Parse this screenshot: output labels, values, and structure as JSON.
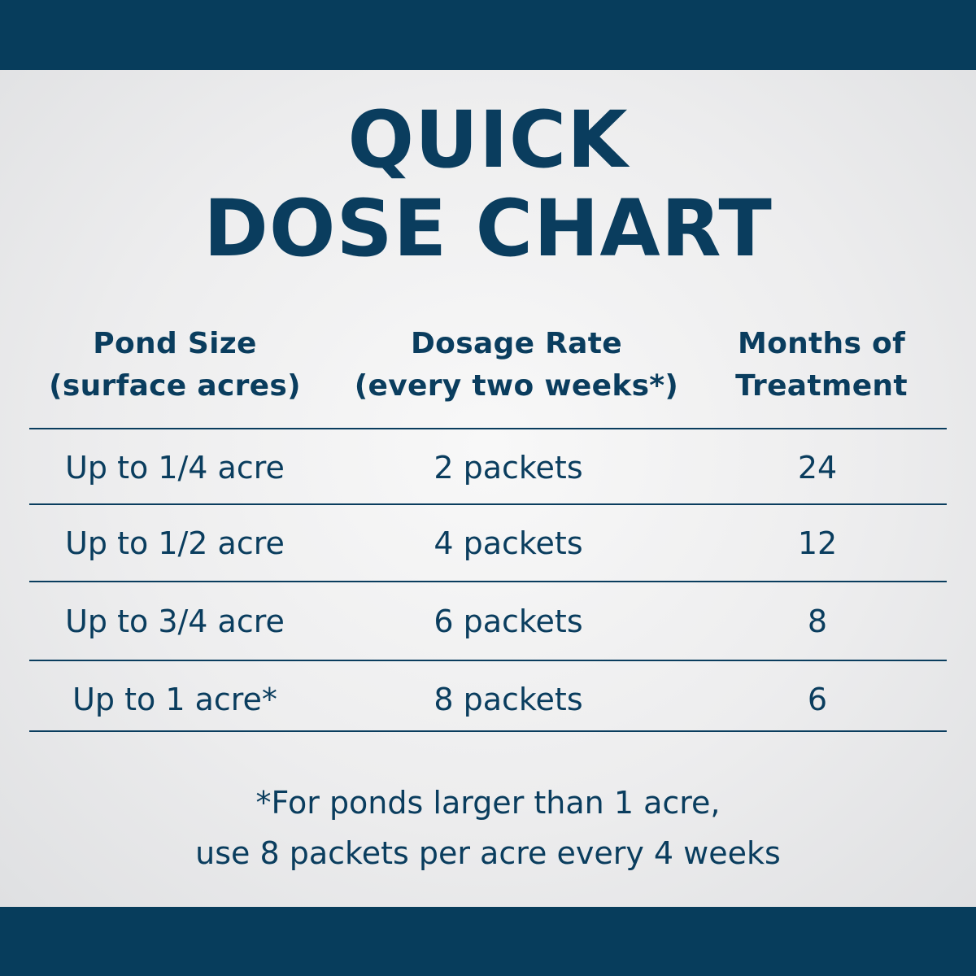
{
  "title": {
    "line1": "QUICK",
    "line2": "DOSE CHART"
  },
  "table": {
    "headers": [
      {
        "line1": "Pond Size",
        "line2": "(surface acres)"
      },
      {
        "line1": "Dosage Rate",
        "line2": "(every two weeks*)"
      },
      {
        "line1": "Months of",
        "line2": "Treatment"
      }
    ],
    "rows": [
      {
        "pond_size": "Up to 1/4 acre",
        "dosage": "2 packets",
        "months": "24"
      },
      {
        "pond_size": "Up to 1/2 acre",
        "dosage": "4 packets",
        "months": "12"
      },
      {
        "pond_size": "Up to 3/4 acre",
        "dosage": "6 packets",
        "months": "8"
      },
      {
        "pond_size": "Up to 1 acre*",
        "dosage": "8 packets",
        "months": "6"
      }
    ]
  },
  "footnote": {
    "line1": "*For ponds larger than 1 acre,",
    "line2": "use 8 packets per acre every 4 weeks"
  },
  "colors": {
    "band": "#073d5c",
    "text": "#0a3d5e",
    "background": "#eeeff0"
  }
}
